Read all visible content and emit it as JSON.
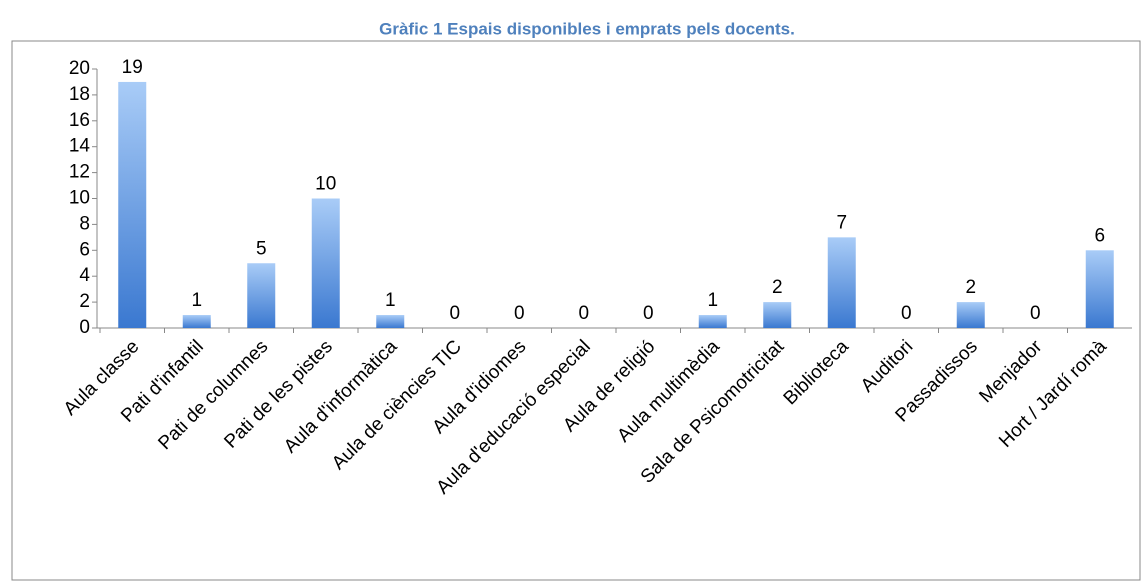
{
  "chart_data": {
    "type": "bar",
    "title": "Gràfic 1 Espais disponibles i emprats pels docents.",
    "categories": [
      "Aula classe",
      "Pati d'infantil",
      "Pati de columnes",
      "Pati de les pistes",
      "Aula d'informàtica",
      "Aula de ciències TIC",
      "Aula d'idiomes",
      "Aula d'educació especial",
      "Aula de religió",
      "Aula multimèdia",
      "Sala de Psicomotricitat",
      "Biblioteca",
      "Auditori",
      "Passadissos",
      "Menjador",
      "Hort / Jardí romà"
    ],
    "values": [
      19,
      1,
      5,
      10,
      1,
      0,
      0,
      0,
      0,
      1,
      2,
      7,
      0,
      2,
      0,
      6
    ],
    "color": "#4a86d8",
    "ylim": [
      0,
      20
    ],
    "yticks": [
      0,
      2,
      4,
      6,
      8,
      10,
      12,
      14,
      16,
      18,
      20
    ],
    "grid": false
  }
}
